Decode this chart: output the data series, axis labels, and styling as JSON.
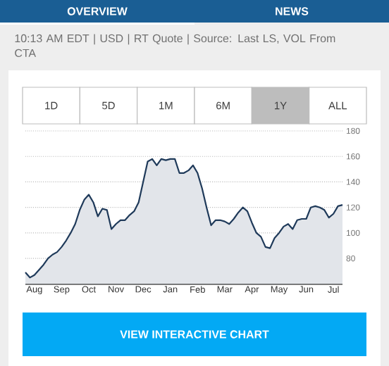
{
  "chart_data": {
    "type": "area",
    "subtitle": "10:13 AM EDT | USD | RT Quote | Source: Last LS, VOL From CTA",
    "categories": [
      null,
      null,
      "Aug",
      null,
      null,
      null,
      null,
      null,
      "Sep",
      null,
      null,
      null,
      null,
      null,
      "Oct",
      null,
      null,
      null,
      null,
      null,
      "Nov",
      null,
      null,
      null,
      null,
      null,
      "Dec",
      null,
      null,
      null,
      null,
      null,
      "Jan",
      null,
      null,
      null,
      null,
      null,
      "Feb",
      null,
      null,
      null,
      null,
      null,
      "Mar",
      null,
      null,
      null,
      null,
      null,
      "Apr",
      null,
      null,
      null,
      null,
      null,
      "May",
      null,
      null,
      null,
      null,
      null,
      "Jun",
      null,
      null,
      null,
      null,
      null,
      "Jul",
      null,
      null
    ],
    "values": [
      69,
      65,
      67,
      71,
      75,
      80,
      83,
      85,
      89,
      94,
      100,
      107,
      118,
      126,
      130,
      124,
      113,
      119,
      118,
      103,
      107,
      110,
      110,
      114,
      117,
      124,
      140,
      156,
      158,
      153,
      158,
      157,
      158,
      158,
      147,
      147,
      149,
      153,
      147,
      135,
      120,
      106,
      110,
      110,
      109,
      107,
      111,
      116,
      120,
      117,
      108,
      100,
      97,
      89,
      88,
      96,
      100,
      105,
      107,
      103,
      110,
      111,
      111,
      120,
      121,
      120,
      118,
      112,
      115,
      121,
      122
    ],
    "color": "#1f3a5a",
    "ylim": [
      60,
      180
    ],
    "yticks": [
      80,
      100,
      120,
      140,
      160,
      180
    ],
    "grid": "y",
    "annotations": [
      "OVERVIEW",
      "NEWS",
      "1D",
      "5D",
      "1M",
      "6M",
      "1Y",
      "ALL",
      "VIEW INTERACTIVE CHART"
    ]
  }
}
